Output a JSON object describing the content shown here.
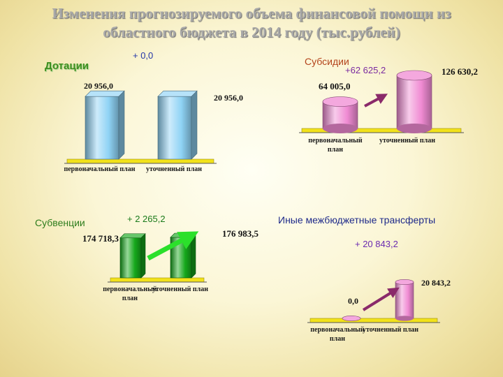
{
  "title": {
    "line1": "Изменения прогнозируемого объема финансовой помощи из",
    "line2": "областного бюджета в 2014 году (тыс.рублей)"
  },
  "colors": {
    "dotacii": "#8fd3f5",
    "subsidii": "#f08bd3",
    "subvencii": "#15a81b",
    "inye": "#f08bd3",
    "platform": "#f2e21a",
    "arrow_pink": "#8a2a6a",
    "arrow_green": "#2be02b"
  },
  "chart_data": [
    {
      "type": "bar",
      "title": "Дотации",
      "change": "+ 0,0",
      "categories": [
        "первоначальный план",
        "уточненный план"
      ],
      "values": [
        20956.0,
        20956.0
      ],
      "value_labels": [
        "20 956,0",
        "20 956,0"
      ]
    },
    {
      "type": "bar",
      "title": "Субсидии",
      "change": "+62 625,2",
      "categories": [
        "первоначальный план",
        "уточненный план"
      ],
      "values": [
        64005.0,
        126630.2
      ],
      "value_labels": [
        "64 005,0",
        "126 630,2"
      ]
    },
    {
      "type": "bar",
      "title": "Субвенции",
      "change": "+ 2 265,2",
      "categories": [
        "первоначальный план",
        "уточненный план"
      ],
      "values": [
        174718.3,
        176983.5
      ],
      "value_labels": [
        "174 718,3",
        "176 983,5"
      ]
    },
    {
      "type": "bar",
      "title": "Иные межбюджетные трансферты",
      "change": "+ 20 843,2",
      "categories": [
        "первоначальный план",
        "уточненный план"
      ],
      "values": [
        0.0,
        20843.2
      ],
      "value_labels": [
        "0,0",
        "20 843,2"
      ]
    }
  ]
}
